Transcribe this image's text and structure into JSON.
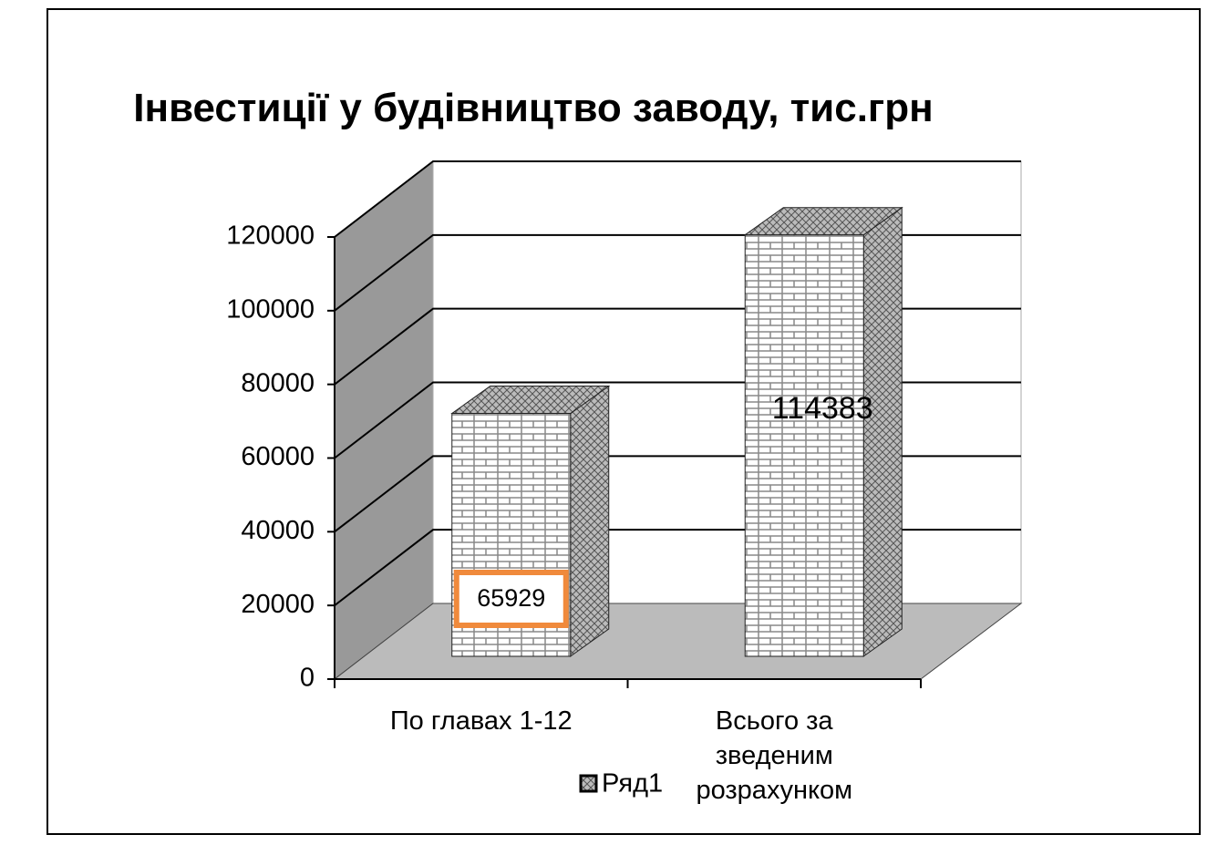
{
  "chart_data": {
    "type": "bar3d",
    "title": "Інвестиції у будівництво заводу, тис.грн",
    "categories": [
      "По главах 1-12",
      "Всього за зведеним розрахунком"
    ],
    "series": [
      {
        "name": "Ряд1",
        "color": "#ffffff",
        "values": [
          65929,
          114383
        ]
      }
    ],
    "ylim": [
      0,
      120000
    ],
    "yticks": [
      0,
      20000,
      40000,
      60000,
      80000,
      100000,
      120000
    ],
    "grid": true,
    "legend": "bottom"
  }
}
